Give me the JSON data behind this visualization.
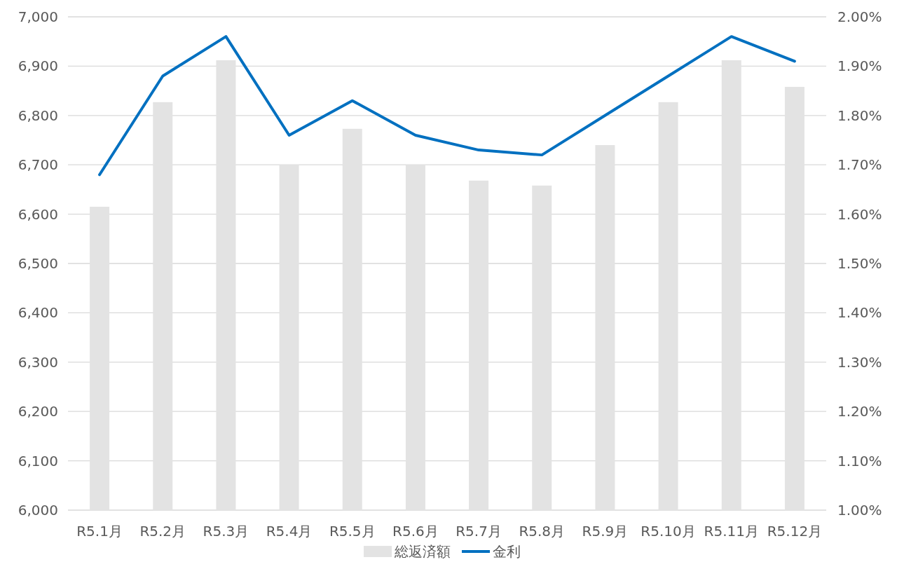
{
  "chart_data": {
    "type": "bar",
    "categories": [
      "R5.1月",
      "R5.2月",
      "R5.3月",
      "R5.4月",
      "R5.5月",
      "R5.6月",
      "R5.7月",
      "R5.8月",
      "R5.9月",
      "R5.10月",
      "R5.11月",
      "R5.12月"
    ],
    "series": [
      {
        "name": "総返済額",
        "color": "#e3e3e3",
        "values": [
          6615,
          6827,
          6912,
          6700,
          6773,
          6700,
          6668,
          6658,
          6740,
          6827,
          6912,
          6858
        ]
      },
      {
        "name": "金利",
        "type": "line",
        "axis": "y2",
        "color": "#0070c0",
        "values": [
          1.68,
          1.88,
          1.96,
          1.76,
          1.83,
          1.76,
          1.73,
          1.72,
          1.8,
          1.88,
          1.96,
          1.91
        ]
      }
    ],
    "ylim": [
      6000,
      7000
    ],
    "yticks": [
      {
        "value": 6000,
        "label": "6,000"
      },
      {
        "value": 6100,
        "label": "6,100"
      },
      {
        "value": 6200,
        "label": "6,200"
      },
      {
        "value": 6300,
        "label": "6,300"
      },
      {
        "value": 6400,
        "label": "6,400"
      },
      {
        "value": 6500,
        "label": "6,500"
      },
      {
        "value": 6600,
        "label": "6,600"
      },
      {
        "value": 6700,
        "label": "6,700"
      },
      {
        "value": 6800,
        "label": "6,800"
      },
      {
        "value": 6900,
        "label": "6,900"
      },
      {
        "value": 7000,
        "label": "7,000"
      }
    ],
    "y2lim": [
      1.0,
      2.0
    ],
    "y2ticks": [
      {
        "value": 1.0,
        "label": "1.00%"
      },
      {
        "value": 1.1,
        "label": "1.10%"
      },
      {
        "value": 1.2,
        "label": "1.20%"
      },
      {
        "value": 1.3,
        "label": "1.30%"
      },
      {
        "value": 1.4,
        "label": "1.40%"
      },
      {
        "value": 1.5,
        "label": "1.50%"
      },
      {
        "value": 1.6,
        "label": "1.60%"
      },
      {
        "value": 1.7,
        "label": "1.70%"
      },
      {
        "value": 1.8,
        "label": "1.80%"
      },
      {
        "value": 1.9,
        "label": "1.90%"
      },
      {
        "value": 2.0,
        "label": "2.00%"
      }
    ],
    "grid": "y",
    "legend": "bottom",
    "marker": "none",
    "line_style": "solid"
  }
}
